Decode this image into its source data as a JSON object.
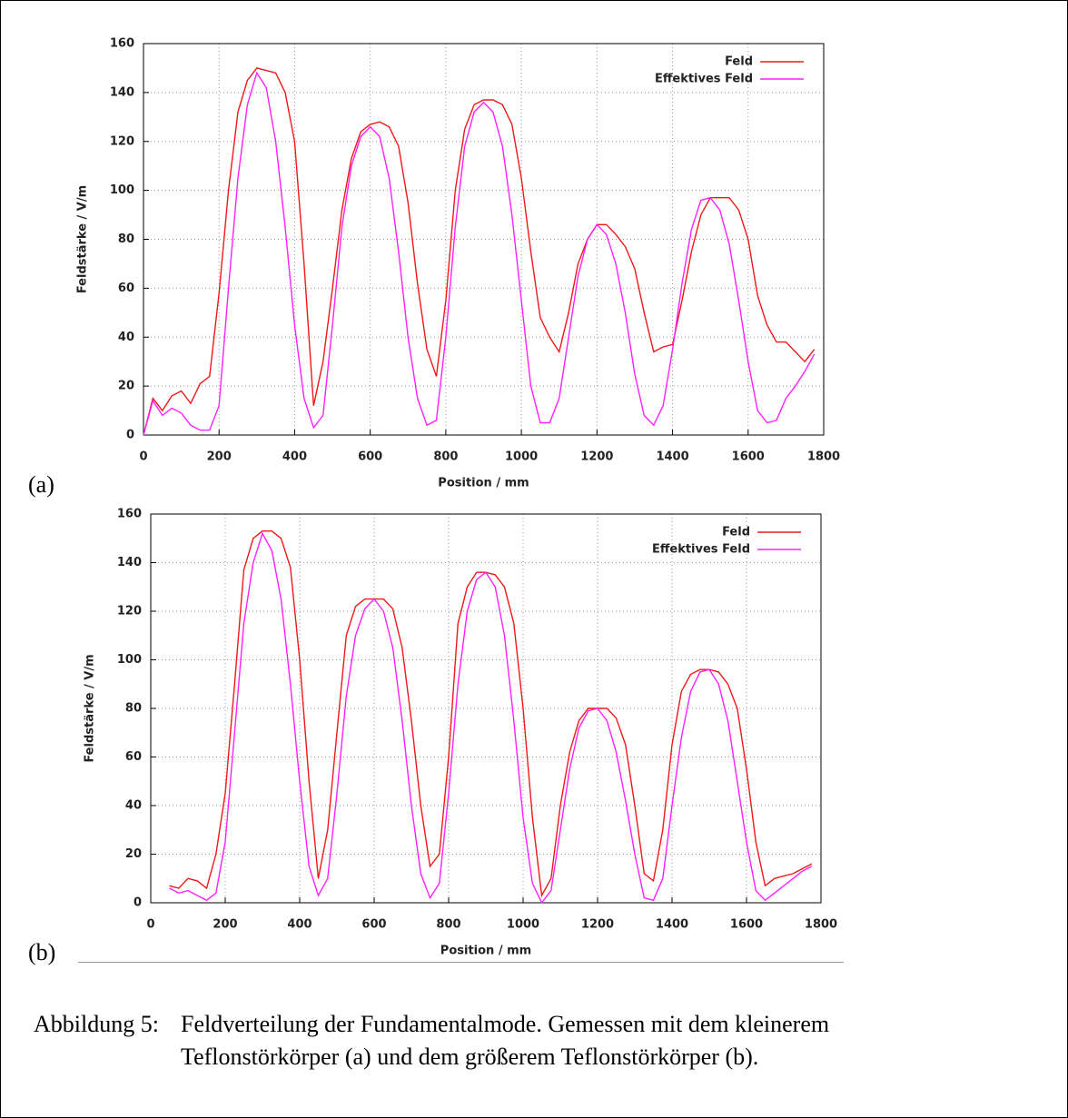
{
  "chart_data": [
    {
      "type": "line",
      "panel": "(a)",
      "xlabel": "Position / mm",
      "ylabel": "Feldstärke / V/m",
      "xlim": [
        0,
        1800
      ],
      "ylim": [
        0,
        160
      ],
      "xticks": [
        0,
        200,
        400,
        600,
        800,
        1000,
        1200,
        1400,
        1600,
        1800
      ],
      "yticks": [
        0,
        20,
        40,
        60,
        80,
        100,
        120,
        140,
        160
      ],
      "grid": true,
      "legend": "upper right",
      "x": [
        0,
        25,
        50,
        75,
        100,
        125,
        150,
        175,
        200,
        225,
        250,
        275,
        300,
        325,
        350,
        375,
        400,
        425,
        450,
        475,
        500,
        525,
        550,
        575,
        600,
        625,
        650,
        675,
        700,
        725,
        750,
        775,
        800,
        825,
        850,
        875,
        900,
        925,
        950,
        975,
        1000,
        1025,
        1050,
        1075,
        1100,
        1125,
        1150,
        1175,
        1200,
        1225,
        1250,
        1275,
        1300,
        1325,
        1350,
        1375,
        1400,
        1425,
        1450,
        1475,
        1500,
        1525,
        1550,
        1575,
        1600,
        1625,
        1650,
        1675,
        1700,
        1725,
        1750,
        1775
      ],
      "series": [
        {
          "name": "Feld",
          "color": "#f01818",
          "values": [
            0,
            15,
            10,
            16,
            18,
            13,
            21,
            24,
            58,
            100,
            132,
            145,
            150,
            149,
            148,
            140,
            120,
            70,
            12,
            30,
            60,
            92,
            113,
            124,
            127,
            128,
            126,
            118,
            95,
            62,
            35,
            24,
            55,
            100,
            125,
            135,
            137,
            137,
            135,
            127,
            105,
            75,
            48,
            40,
            34,
            50,
            70,
            80,
            86,
            86,
            82,
            77,
            68,
            50,
            34,
            36,
            37,
            55,
            75,
            90,
            97,
            97,
            97,
            92,
            80,
            57,
            45,
            38,
            38,
            34,
            30,
            35
          ]
        },
        {
          "name": "Effektives Feld",
          "color": "#ff20ff",
          "values": [
            0,
            14,
            8,
            11,
            9,
            4,
            2,
            2,
            12,
            60,
            105,
            135,
            148,
            142,
            120,
            85,
            45,
            15,
            3,
            8,
            45,
            85,
            110,
            122,
            126,
            122,
            105,
            75,
            40,
            15,
            4,
            6,
            40,
            85,
            118,
            132,
            136,
            132,
            118,
            90,
            55,
            20,
            5,
            5,
            15,
            40,
            65,
            80,
            86,
            82,
            70,
            50,
            25,
            8,
            4,
            12,
            35,
            62,
            84,
            96,
            97,
            92,
            78,
            55,
            30,
            10,
            5,
            6,
            15,
            20,
            26,
            33
          ]
        }
      ]
    },
    {
      "type": "line",
      "panel": "(b)",
      "xlabel": "Position / mm",
      "ylabel": "Feldstärke / V/m",
      "xlim": [
        0,
        1800
      ],
      "ylim": [
        0,
        160
      ],
      "xticks": [
        0,
        200,
        400,
        600,
        800,
        1000,
        1200,
        1400,
        1600,
        1800
      ],
      "yticks": [
        0,
        20,
        40,
        60,
        80,
        100,
        120,
        140,
        160
      ],
      "grid": true,
      "legend": "upper right",
      "x": [
        0,
        25,
        50,
        75,
        100,
        125,
        150,
        175,
        200,
        225,
        250,
        275,
        300,
        325,
        350,
        375,
        400,
        425,
        450,
        475,
        500,
        525,
        550,
        575,
        600,
        625,
        650,
        675,
        700,
        725,
        750,
        775,
        800,
        825,
        850,
        875,
        900,
        925,
        950,
        975,
        1000,
        1025,
        1050,
        1075,
        1100,
        1125,
        1150,
        1175,
        1200,
        1225,
        1250,
        1275,
        1300,
        1325,
        1350,
        1375,
        1400,
        1425,
        1450,
        1475,
        1500,
        1525,
        1550,
        1575,
        1600,
        1625,
        1650,
        1675,
        1700,
        1725,
        1750,
        1775
      ],
      "series": [
        {
          "name": "Feld",
          "color": "#f01818",
          "values": [
            null,
            null,
            7,
            6,
            10,
            9,
            6,
            20,
            45,
            90,
            137,
            150,
            153,
            153,
            150,
            138,
            100,
            50,
            10,
            30,
            70,
            110,
            122,
            125,
            125,
            125,
            121,
            105,
            75,
            40,
            15,
            20,
            60,
            115,
            130,
            136,
            136,
            135,
            130,
            115,
            80,
            35,
            3,
            10,
            40,
            62,
            75,
            80,
            80,
            80,
            76,
            65,
            40,
            12,
            9,
            30,
            65,
            87,
            94,
            96,
            96,
            95,
            90,
            80,
            55,
            25,
            7,
            10,
            11,
            12,
            14,
            16
          ]
        },
        {
          "name": "Effektives Feld",
          "color": "#ff20ff",
          "values": [
            null,
            null,
            6,
            4,
            5,
            3,
            1,
            4,
            25,
            70,
            115,
            140,
            152,
            145,
            125,
            90,
            50,
            15,
            3,
            10,
            45,
            85,
            110,
            121,
            125,
            120,
            105,
            75,
            40,
            12,
            2,
            8,
            45,
            90,
            120,
            133,
            136,
            130,
            110,
            75,
            35,
            8,
            0,
            5,
            30,
            55,
            72,
            79,
            80,
            75,
            62,
            42,
            20,
            2,
            1,
            10,
            40,
            68,
            87,
            95,
            96,
            90,
            75,
            50,
            25,
            5,
            1,
            4,
            7,
            10,
            13,
            15
          ]
        }
      ]
    }
  ],
  "caption": {
    "label": "Abbildung 5:",
    "lines": [
      "Feldverteilung der Fundamentalmode. Gemessen mit dem kleinerem",
      "Teflonstörkörper (a) und dem größerem Teflonstörkörper (b)."
    ]
  }
}
